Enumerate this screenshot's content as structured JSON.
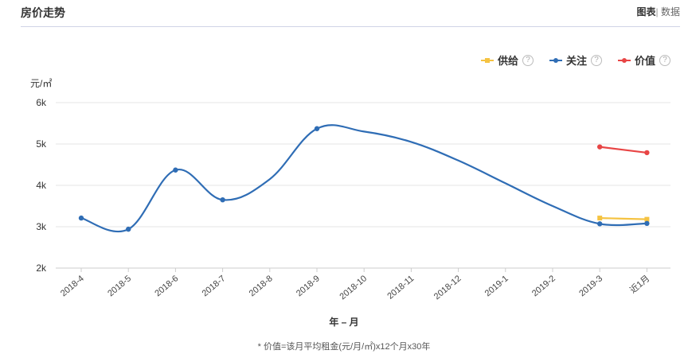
{
  "header": {
    "title": "房价走势",
    "toggle_chart": "图表",
    "toggle_sep": "|",
    "toggle_data": "数据"
  },
  "legend_help": "?",
  "chart_data": {
    "type": "line",
    "ylabel": "元/㎡",
    "xlabel": "年 – 月",
    "categories": [
      "2018-4",
      "2018-5",
      "2018-6",
      "2018-7",
      "2018-8",
      "2018-9",
      "2018-10",
      "2018-11",
      "2018-12",
      "2019-1",
      "2019-2",
      "2019-3",
      "近1月"
    ],
    "ylim": [
      2000,
      6000
    ],
    "yticks": [
      2000,
      3000,
      4000,
      5000,
      6000
    ],
    "ytick_labels": [
      "2k",
      "3k",
      "4k",
      "5k",
      "6k"
    ],
    "grid": true,
    "legend_position": "top-right",
    "series": [
      {
        "name": "供给",
        "color": "#f5c342",
        "marker": "square",
        "values": [
          null,
          null,
          null,
          null,
          null,
          null,
          null,
          null,
          null,
          null,
          null,
          3210,
          3180
        ]
      },
      {
        "name": "关注",
        "color": "#2f6db5",
        "marker": "circle",
        "values": [
          3210,
          2940,
          4370,
          3650,
          4150,
          5370,
          5300,
          5050,
          4600,
          4050,
          3500,
          3070,
          3080
        ],
        "marked": [
          true,
          true,
          true,
          true,
          false,
          true,
          false,
          false,
          false,
          false,
          false,
          true,
          true
        ]
      },
      {
        "name": "价值",
        "color": "#e84545",
        "marker": "circle",
        "values": [
          null,
          null,
          null,
          null,
          null,
          null,
          null,
          null,
          null,
          null,
          null,
          4930,
          4790
        ]
      }
    ]
  },
  "footnote": "* 价值=该月平均租金(元/月/㎡)x12个月x30年"
}
